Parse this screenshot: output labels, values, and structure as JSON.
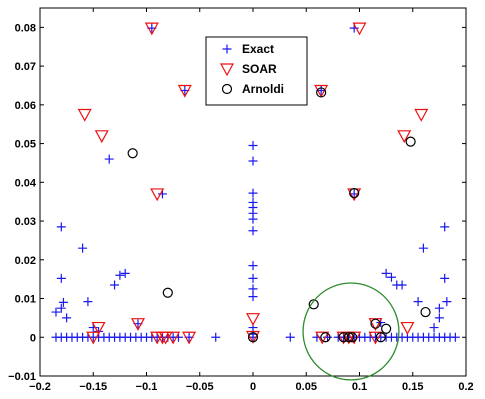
{
  "chart_data": {
    "type": "scatter",
    "title": "",
    "xlabel": "",
    "ylabel": "",
    "xlim": [
      -0.2,
      0.2
    ],
    "ylim": [
      -0.01,
      0.085
    ],
    "xticks": [
      -0.2,
      -0.15,
      -0.1,
      -0.05,
      0,
      0.05,
      0.1,
      0.15,
      0.2
    ],
    "xtick_labels": [
      "−0.2",
      "−0.15",
      "−0.1",
      "−0.05",
      "0",
      "0.05",
      "0.1",
      "0.15",
      "0.2"
    ],
    "yticks": [
      -0.01,
      0,
      0.01,
      0.02,
      0.03,
      0.04,
      0.05,
      0.06,
      0.07,
      0.08
    ],
    "ytick_labels": [
      "−0.01",
      "0",
      "0.01",
      "0.02",
      "0.03",
      "0.04",
      "0.05",
      "0.06",
      "0.07",
      "0.08"
    ],
    "grid": false,
    "legend_position": "top-center",
    "series": [
      {
        "name": "Exact",
        "marker": "plus",
        "color": "#1a1aee",
        "points": [
          [
            -0.185,
            0.0
          ],
          [
            -0.18,
            0.0
          ],
          [
            -0.175,
            0.0
          ],
          [
            -0.17,
            0.0
          ],
          [
            -0.165,
            0.0
          ],
          [
            -0.16,
            0.0
          ],
          [
            -0.155,
            0.0
          ],
          [
            -0.15,
            0.0
          ],
          [
            -0.145,
            0.0
          ],
          [
            -0.14,
            0.0
          ],
          [
            -0.135,
            0.0
          ],
          [
            -0.13,
            0.0
          ],
          [
            -0.125,
            0.0
          ],
          [
            -0.12,
            0.0
          ],
          [
            -0.115,
            0.0
          ],
          [
            -0.11,
            0.0
          ],
          [
            -0.105,
            0.0
          ],
          [
            -0.1,
            0.0
          ],
          [
            -0.095,
            0.0
          ],
          [
            -0.09,
            0.0
          ],
          [
            -0.085,
            0.0
          ],
          [
            -0.08,
            0.0
          ],
          [
            -0.075,
            0.0
          ],
          [
            -0.07,
            0.0
          ],
          [
            -0.06,
            0.0
          ],
          [
            -0.035,
            0.0
          ],
          [
            0.0,
            0.0
          ],
          [
            0.035,
            0.0
          ],
          [
            0.06,
            0.0
          ],
          [
            0.07,
            0.0
          ],
          [
            0.08,
            0.0
          ],
          [
            0.085,
            0.0
          ],
          [
            0.09,
            0.0
          ],
          [
            0.095,
            0.0
          ],
          [
            0.1,
            0.0
          ],
          [
            0.105,
            0.0
          ],
          [
            0.11,
            0.0
          ],
          [
            0.115,
            0.0
          ],
          [
            0.12,
            0.0
          ],
          [
            0.125,
            0.0
          ],
          [
            0.13,
            0.0
          ],
          [
            0.135,
            0.0
          ],
          [
            0.14,
            0.0
          ],
          [
            0.145,
            0.0
          ],
          [
            0.15,
            0.0
          ],
          [
            0.155,
            0.0
          ],
          [
            0.16,
            0.0
          ],
          [
            0.165,
            0.0
          ],
          [
            0.17,
            0.0
          ],
          [
            0.175,
            0.0
          ],
          [
            0.18,
            0.0
          ],
          [
            0.185,
            0.0
          ],
          [
            0.19,
            0.0
          ],
          [
            -0.18,
            0.0285
          ],
          [
            -0.18,
            0.0152
          ],
          [
            -0.185,
            0.0065
          ],
          [
            -0.18,
            0.0075
          ],
          [
            -0.175,
            0.005
          ],
          [
            -0.178,
            0.009
          ],
          [
            -0.16,
            0.023
          ],
          [
            -0.155,
            0.0092
          ],
          [
            -0.15,
            0.0025
          ],
          [
            -0.145,
            0.0015
          ],
          [
            -0.13,
            0.0135
          ],
          [
            -0.125,
            0.016
          ],
          [
            -0.12,
            0.0165
          ],
          [
            -0.108,
            0.0035
          ],
          [
            -0.095,
            0.0798
          ],
          [
            -0.085,
            0.037
          ],
          [
            -0.064,
            0.0637
          ],
          [
            -0.135,
            0.046
          ],
          [
            0.0,
            0.0495
          ],
          [
            0.0,
            0.0455
          ],
          [
            0.0,
            0.0372
          ],
          [
            0.0,
            0.0348
          ],
          [
            0.0,
            0.0335
          ],
          [
            0.0,
            0.032
          ],
          [
            0.0,
            0.0305
          ],
          [
            0.0,
            0.0275
          ],
          [
            0.0,
            0.0185
          ],
          [
            0.0,
            0.0152
          ],
          [
            0.0,
            0.0125
          ],
          [
            0.0,
            0.0105
          ],
          [
            0.0,
            0.0025
          ],
          [
            0.0,
            0.0008
          ],
          [
            0.064,
            0.0637
          ],
          [
            0.095,
            0.0798
          ],
          [
            0.095,
            0.037
          ],
          [
            0.125,
            0.0165
          ],
          [
            0.13,
            0.0155
          ],
          [
            0.135,
            0.0135
          ],
          [
            0.14,
            0.0135
          ],
          [
            0.12,
            0.0038
          ],
          [
            0.16,
            0.023
          ],
          [
            0.155,
            0.0092
          ],
          [
            0.17,
            0.0025
          ],
          [
            0.175,
            0.005
          ],
          [
            0.175,
            0.0075
          ],
          [
            0.182,
            0.0092
          ],
          [
            0.18,
            0.0152
          ],
          [
            0.18,
            0.0285
          ]
        ]
      },
      {
        "name": "SOAR",
        "marker": "triangle-down",
        "color": "#ee1111",
        "points": [
          [
            -0.095,
            0.0798
          ],
          [
            -0.064,
            0.0637
          ],
          [
            -0.158,
            0.0575
          ],
          [
            -0.142,
            0.052
          ],
          [
            -0.09,
            0.037
          ],
          [
            -0.145,
            0.0025
          ],
          [
            -0.108,
            0.0035
          ],
          [
            -0.09,
            0.0
          ],
          [
            -0.085,
            0.0
          ],
          [
            -0.082,
            0.0
          ],
          [
            -0.075,
            0.0
          ],
          [
            -0.06,
            0.0
          ],
          [
            -0.15,
            0.0
          ],
          [
            0.0,
            0.0048
          ],
          [
            0.0,
            0.0002
          ],
          [
            0.064,
            0.0637
          ],
          [
            0.095,
            0.037
          ],
          [
            0.1,
            0.0798
          ],
          [
            0.158,
            0.0575
          ],
          [
            0.142,
            0.052
          ],
          [
            0.145,
            0.0025
          ],
          [
            0.115,
            0.0035
          ],
          [
            0.065,
            0.0
          ],
          [
            0.085,
            0.0
          ],
          [
            0.09,
            0.0
          ],
          [
            0.095,
            0.0
          ],
          [
            0.115,
            0.0
          ]
        ]
      },
      {
        "name": "Arnoldi",
        "marker": "circle",
        "color": "#000000",
        "points": [
          [
            -0.113,
            0.0475
          ],
          [
            -0.08,
            0.0115
          ],
          [
            0.0,
            0.0
          ],
          [
            0.057,
            0.0085
          ],
          [
            0.064,
            0.0632
          ],
          [
            0.095,
            0.0372
          ],
          [
            0.085,
            0.0
          ],
          [
            0.09,
            0.0
          ],
          [
            0.093,
            0.0
          ],
          [
            0.115,
            0.0035
          ],
          [
            0.12,
            0.0
          ],
          [
            0.125,
            0.0022
          ],
          [
            0.148,
            0.0505
          ],
          [
            0.162,
            0.0065
          ],
          [
            0.068,
            0.0
          ]
        ]
      }
    ],
    "annotations": [
      {
        "type": "ellipse",
        "center": [
          0.092,
          0.0015
        ],
        "radius": [
          0.045,
          0.0125
        ],
        "color": "#2e8b2e"
      }
    ]
  }
}
